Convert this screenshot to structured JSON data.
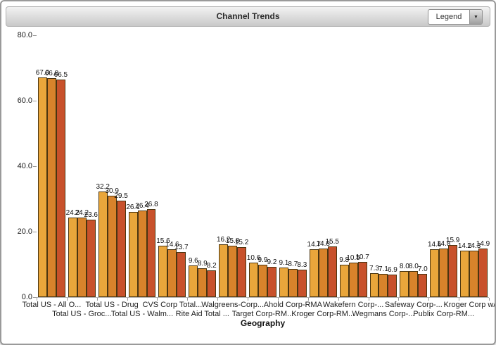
{
  "window": {
    "title": "Channel Trends"
  },
  "legend": {
    "label": "Legend"
  },
  "chart_data": {
    "type": "bar",
    "title": "Channel Trends",
    "xlabel": "Geography",
    "ylabel": "",
    "ylim": [
      0,
      80
    ],
    "yticks": [
      80.0,
      60.0,
      40.0,
      20.0,
      0.0
    ],
    "grid": false,
    "legend_position": "collapsed-dropdown-top-right",
    "categories": [
      "Total US - All O...",
      "Total US - Groc...",
      "Total US - Drug",
      "Total US - Walm...",
      "CVS Corp Total...",
      "Rite Aid Total ...",
      "Walgreens-Corp...",
      "Target Corp-RM...",
      "Ahold Corp-RMA",
      "Kroger Corp-RM...",
      "Wakefern Corp-...",
      "Wegmans Corp-...",
      "Safeway Corp-...",
      "Publix Corp-RM...",
      "Kroger Corp w/ ..."
    ],
    "series": [
      {
        "color": "#E9A63B",
        "values": [
          67.0,
          24.2,
          32.2,
          26.1,
          15.6,
          9.6,
          16.2,
          10.6,
          9.1,
          14.7,
          9.8,
          7.3,
          8.0,
          14.6,
          14.2
        ]
      },
      {
        "color": "#D8832B",
        "values": [
          66.8,
          24.2,
          30.9,
          26.4,
          14.6,
          8.9,
          15.8,
          9.9,
          8.7,
          14.8,
          10.5,
          7.1,
          8.0,
          14.8,
          14.3
        ]
      },
      {
        "color": "#C8512B",
        "values": [
          66.5,
          23.6,
          29.5,
          26.8,
          13.7,
          8.2,
          15.2,
          9.2,
          8.3,
          15.5,
          10.7,
          6.9,
          7.0,
          15.9,
          14.9
        ]
      }
    ]
  }
}
